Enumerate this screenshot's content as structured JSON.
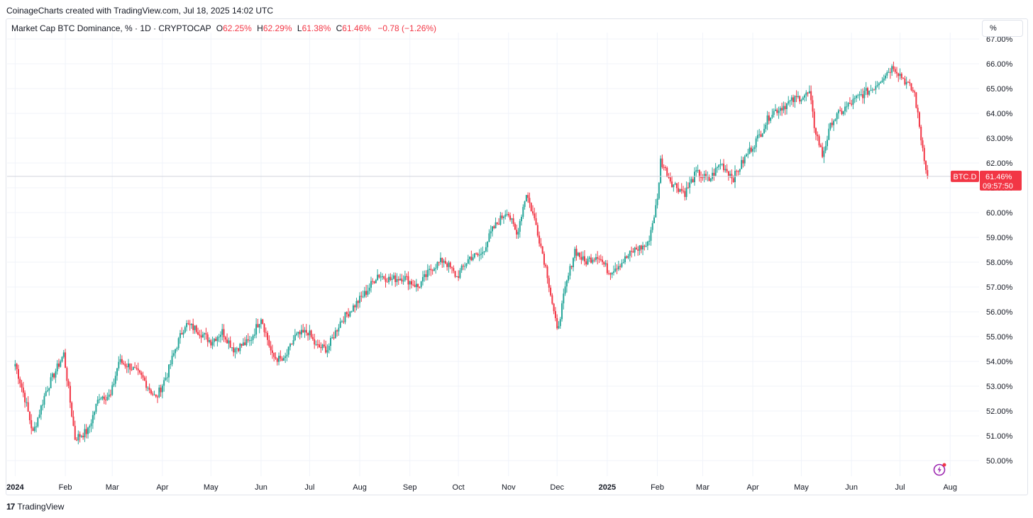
{
  "caption": "CoinageCharts created with TradingView.com, Jul 18, 2025 14:02 UTC",
  "legend": {
    "symbol": "Market Cap BTC Dominance, % · 1D · CRYPTOCAP",
    "o_label": "O",
    "o_value": "62.25%",
    "h_label": "H",
    "h_value": "62.29%",
    "l_label": "L",
    "l_value": "61.38%",
    "c_label": "C",
    "c_value": "61.46%",
    "change": "−0.78 (−1.26%)"
  },
  "scale_button": "%",
  "price_tag": {
    "symbol": "BTC.D",
    "price": "61.46%",
    "countdown": "09:57:50"
  },
  "footer": {
    "brand_mark": "17",
    "brand_name": "TradingView"
  },
  "icons": {
    "flash": "lightning-bolt-icon",
    "logo": "tradingview-logo-icon"
  },
  "colors": {
    "up": "#26a69a",
    "down": "#f23645",
    "grid": "#f0f3fa",
    "flash": "#9c27b0"
  },
  "chart_data": {
    "type": "line",
    "series": [
      {
        "name": "BTC.D",
        "x": [
          "2024-01-01",
          "2024-01-07",
          "2024-01-12",
          "2024-01-20",
          "2024-01-31",
          "2024-02-07",
          "2024-02-15",
          "2024-02-22",
          "2024-02-29",
          "2024-03-05",
          "2024-03-12",
          "2024-03-20",
          "2024-03-28",
          "2024-04-04",
          "2024-04-09",
          "2024-04-15",
          "2024-04-22",
          "2024-05-01",
          "2024-05-08",
          "2024-05-15",
          "2024-05-25",
          "2024-06-01",
          "2024-06-08",
          "2024-06-15",
          "2024-06-22",
          "2024-06-30",
          "2024-07-05",
          "2024-07-12",
          "2024-07-20",
          "2024-07-28",
          "2024-08-05",
          "2024-08-12",
          "2024-08-20",
          "2024-08-28",
          "2024-09-06",
          "2024-09-15",
          "2024-09-22",
          "2024-09-30",
          "2024-10-08",
          "2024-10-15",
          "2024-10-22",
          "2024-10-31",
          "2024-11-06",
          "2024-11-12",
          "2024-11-18",
          "2024-11-25",
          "2024-12-01",
          "2024-12-06",
          "2024-12-12",
          "2024-12-18",
          "2024-12-26",
          "2025-01-02",
          "2025-01-10",
          "2025-01-18",
          "2025-01-26",
          "2025-02-01",
          "2025-02-03",
          "2025-02-10",
          "2025-02-18",
          "2025-02-25",
          "2025-03-05",
          "2025-03-12",
          "2025-03-20",
          "2025-03-28",
          "2025-04-05",
          "2025-04-12",
          "2025-04-20",
          "2025-04-28",
          "2025-05-06",
          "2025-05-09",
          "2025-05-14",
          "2025-05-20",
          "2025-05-28",
          "2025-06-06",
          "2025-06-14",
          "2025-06-22",
          "2025-06-27",
          "2025-07-03",
          "2025-07-10",
          "2025-07-14",
          "2025-07-18"
        ],
        "values": [
          53.9,
          52.5,
          51.1,
          52.8,
          54.3,
          50.9,
          51.2,
          52.6,
          52.6,
          54.0,
          53.8,
          53.3,
          52.5,
          53.5,
          54.5,
          55.5,
          55.3,
          54.8,
          55.2,
          54.5,
          54.8,
          55.8,
          54.2,
          54.0,
          55.0,
          55.2,
          54.6,
          54.5,
          55.6,
          56.2,
          56.8,
          57.5,
          57.3,
          57.4,
          57.0,
          57.8,
          58.1,
          57.4,
          58.2,
          58.3,
          59.3,
          60.1,
          59.1,
          60.8,
          59.5,
          57.5,
          55.2,
          56.9,
          58.5,
          58.0,
          58.3,
          57.6,
          58.0,
          58.5,
          58.7,
          60.5,
          62.1,
          61.2,
          60.8,
          61.6,
          61.3,
          62.0,
          61.4,
          62.3,
          63.1,
          64.0,
          64.3,
          64.6,
          64.8,
          63.5,
          62.3,
          63.7,
          64.2,
          64.7,
          65.0,
          65.6,
          65.9,
          65.4,
          64.8,
          63.0,
          61.46
        ]
      }
    ],
    "ylim": [
      49.6,
      67.3
    ],
    "y_ticks": [
      "67.00%",
      "66.00%",
      "65.00%",
      "64.00%",
      "63.00%",
      "62.00%",
      "61.00%",
      "60.00%",
      "59.00%",
      "58.00%",
      "57.00%",
      "56.00%",
      "55.00%",
      "54.00%",
      "53.00%",
      "52.00%",
      "51.00%",
      "50.00%"
    ],
    "x_ticks": [
      "2024",
      "Feb",
      "Mar",
      "Apr",
      "May",
      "Jun",
      "Jul",
      "Aug",
      "Sep",
      "Oct",
      "Nov",
      "Dec",
      "2025",
      "Feb",
      "Mar",
      "Apr",
      "May",
      "Jun",
      "Jul",
      "Aug"
    ],
    "grid": true,
    "last_value": 61.46
  }
}
